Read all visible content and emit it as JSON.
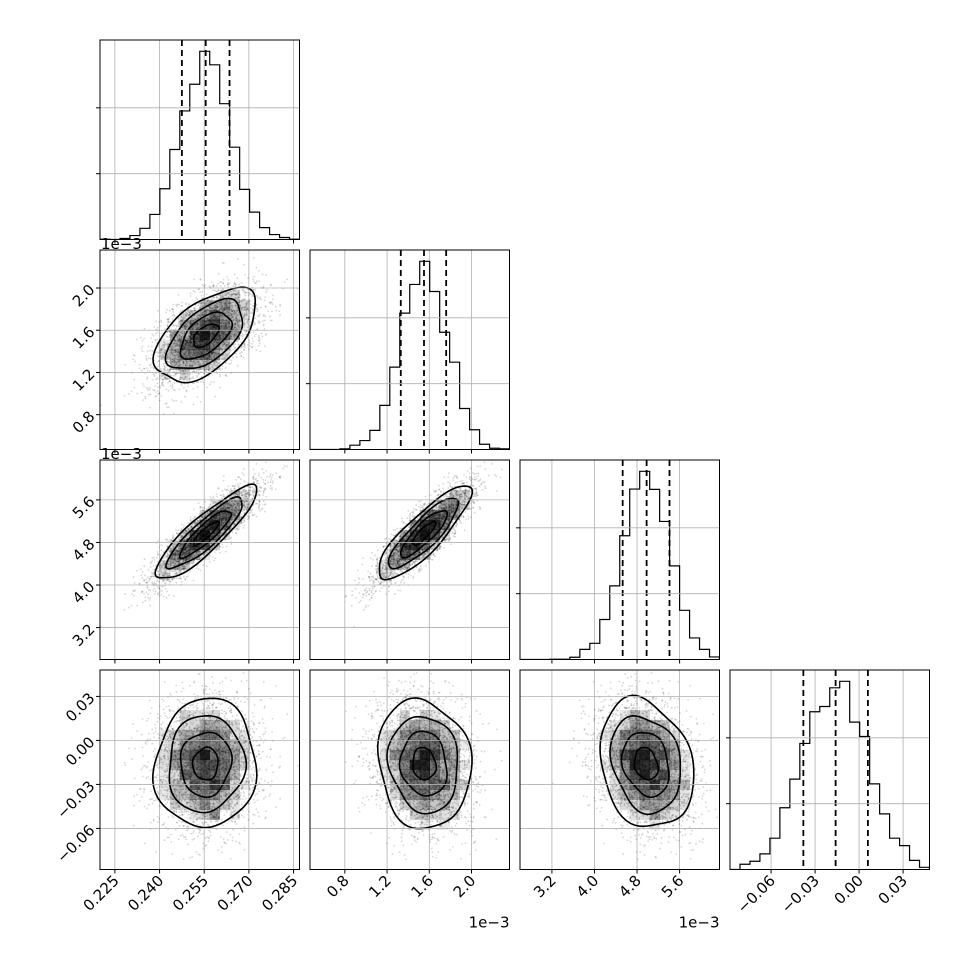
{
  "chart_data": {
    "type": "corner",
    "n_params": 4,
    "grid": true,
    "parameters": [
      {
        "range": [
          0.22,
          0.287
        ],
        "ticks": [
          0.225,
          0.24,
          0.255,
          0.27,
          0.285
        ],
        "tick_labels": [
          "0.225",
          "0.240",
          "0.255",
          "0.270",
          "0.285"
        ],
        "scale_label": "",
        "mean": 0.2555,
        "sd": 0.0085,
        "quantiles": [
          0.2475,
          0.2555,
          0.2635
        ]
      },
      {
        "range": [
          0.00047,
          0.00236
        ],
        "ticks": [
          0.0008,
          0.0012,
          0.0016,
          0.002
        ],
        "tick_labels": [
          "0.8",
          "1.2",
          "1.6",
          "2.0"
        ],
        "scale_label": "1e−3",
        "mean": 0.00155,
        "sd": 0.00022,
        "quantiles": [
          0.00133,
          0.00155,
          0.00176
        ]
      },
      {
        "range": [
          0.0026,
          0.00635
        ],
        "ticks": [
          0.0032,
          0.004,
          0.0048,
          0.0056
        ],
        "tick_labels": [
          "3.2",
          "4.0",
          "4.8",
          "5.6"
        ],
        "scale_label": "1e−3",
        "mean": 0.00497,
        "sd": 0.00044,
        "quantiles": [
          0.00453,
          0.00498,
          0.00541
        ]
      },
      {
        "range": [
          -0.088,
          0.048
        ],
        "ticks": [
          -0.06,
          -0.03,
          0.0,
          0.03
        ],
        "tick_labels": [
          "−0.06",
          "−0.03",
          "0.00",
          "0.03"
        ],
        "scale_label": "",
        "mean": -0.016,
        "sd": 0.022,
        "quantiles": [
          -0.038,
          -0.016,
          0.006
        ]
      }
    ],
    "pair_correlations": [
      {
        "pair": [
          0,
          1
        ],
        "r": 0.55
      },
      {
        "pair": [
          0,
          2
        ],
        "r": 0.88
      },
      {
        "pair": [
          1,
          2
        ],
        "r": 0.85
      },
      {
        "pair": [
          0,
          3
        ],
        "r": 0.05
      },
      {
        "pair": [
          1,
          3
        ],
        "r": -0.1
      },
      {
        "pair": [
          2,
          3
        ],
        "r": -0.2
      }
    ]
  },
  "colors": {
    "line": "#000000",
    "grid": "#b0b0b0",
    "points": "#000000",
    "density": "#000000"
  }
}
